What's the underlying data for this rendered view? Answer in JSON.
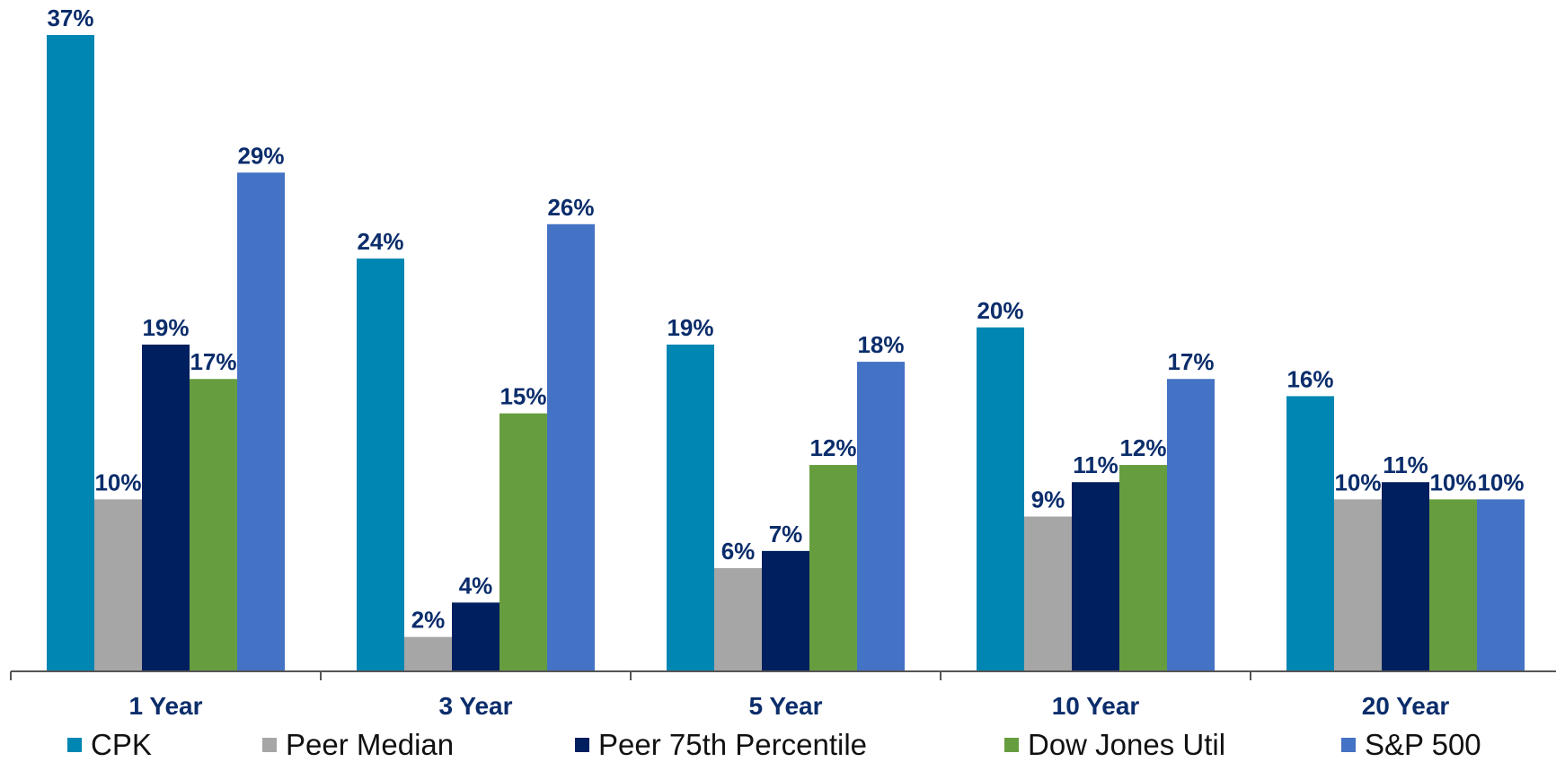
{
  "chart_data": {
    "type": "bar",
    "categories": [
      "1 Year",
      "3 Year",
      "5 Year",
      "10 Year",
      "20  Year"
    ],
    "series": [
      {
        "name": "CPK",
        "color": "#0086B3",
        "values": [
          37,
          24,
          19,
          20,
          16
        ],
        "labels": [
          "37%",
          "24%",
          "19%",
          "20%",
          "16%"
        ]
      },
      {
        "name": "Peer Median",
        "color": "#A6A6A6",
        "values": [
          10,
          2,
          6,
          9,
          10
        ],
        "labels": [
          "10%",
          "2%",
          "6%",
          "9%",
          "10%"
        ]
      },
      {
        "name": "Peer 75th Percentile",
        "color": "#001F5F",
        "values": [
          19,
          4,
          7,
          11,
          11
        ],
        "labels": [
          "19%",
          "4%",
          "7%",
          "11%",
          "11%"
        ]
      },
      {
        "name": "Dow Jones Util",
        "color": "#669E3F",
        "values": [
          17,
          15,
          12,
          12,
          10
        ],
        "labels": [
          "17%",
          "15%",
          "12%",
          "12%",
          "10%"
        ]
      },
      {
        "name": "S&P 500",
        "color": "#4472C4",
        "values": [
          29,
          26,
          18,
          17,
          10
        ],
        "labels": [
          "29%",
          "26%",
          "18%",
          "17%",
          "10%"
        ]
      }
    ],
    "ylim": [
      0,
      37
    ],
    "label_color": "#0B2D6B",
    "grid": false,
    "legend_position": "bottom"
  }
}
